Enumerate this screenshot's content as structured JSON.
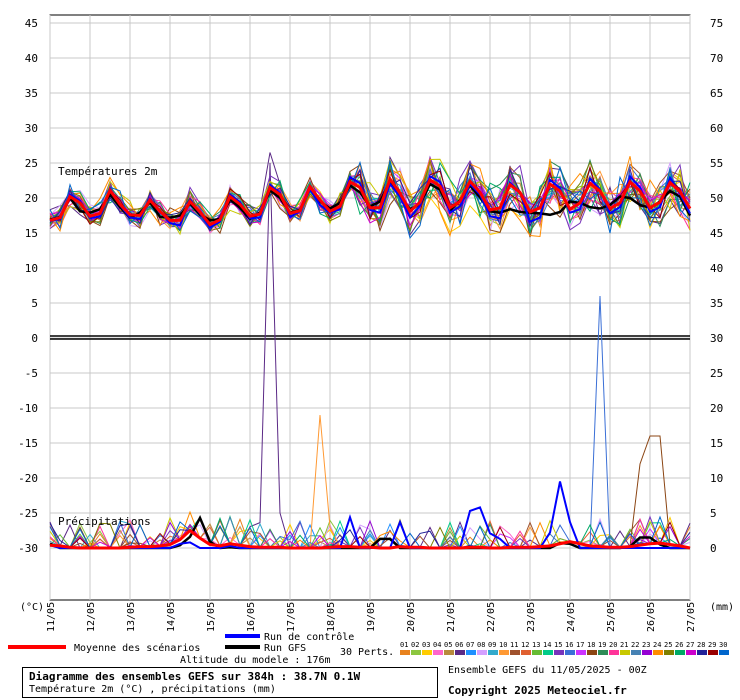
{
  "chart_data": {
    "type": "line",
    "title": "Diagramme des ensembles GEFS sur 384h : 38.7N 0.1W",
    "subtitle": "Température 2m (°C) , précipitations (mm)",
    "altitude_label": "Altitude du modele : 176m",
    "run_info": "Ensemble GEFS du 11/05/2025 - 00Z",
    "copyright": "Copyright 2025 Meteociel.fr",
    "temp_label": "Températures 2m",
    "precip_label": "Précipitations",
    "left_axis_unit": "(°C)",
    "right_axis_unit": "(mm)",
    "left_ticks": [
      45,
      40,
      35,
      30,
      25,
      20,
      15,
      10,
      5,
      0,
      -5,
      -10,
      -15,
      -20,
      -25,
      -30
    ],
    "right_ticks": [
      75,
      70,
      65,
      60,
      55,
      50,
      45,
      40,
      35,
      30,
      25,
      20,
      15,
      10,
      5,
      0
    ],
    "ylim_temp": [
      -30,
      45
    ],
    "ylim_precip": [
      0,
      75
    ],
    "x_dates": [
      "11/05",
      "12/05",
      "13/05",
      "14/05",
      "15/05",
      "16/05",
      "17/05",
      "18/05",
      "19/05",
      "20/05",
      "21/05",
      "22/05",
      "23/05",
      "24/05",
      "25/05",
      "26/05",
      "27/05"
    ],
    "grid": true,
    "legend": {
      "mean": "Moyenne des scénarios",
      "control": "Run de contrôle",
      "gfs": "Run GFS",
      "perts": "30 Perts.",
      "pert_ids": [
        "01",
        "02",
        "03",
        "04",
        "05",
        "06",
        "07",
        "08",
        "09",
        "10",
        "11",
        "12",
        "13",
        "14",
        "15",
        "16",
        "17",
        "18",
        "19",
        "20",
        "21",
        "22",
        "23",
        "24",
        "25",
        "26",
        "27",
        "28",
        "29",
        "30"
      ]
    },
    "colors": {
      "mean": "#ff0000",
      "control": "#0000ff",
      "gfs": "#000000",
      "perts": [
        "#e8821e",
        "#8cc63f",
        "#ffcc00",
        "#ff66cc",
        "#b88a3c",
        "#5b2a86",
        "#1e90ff",
        "#d4a0ff",
        "#33aacc",
        "#ff9933",
        "#a0522d",
        "#e06030",
        "#66bb33",
        "#00cc88",
        "#7733bb",
        "#3a6fd6",
        "#cc33ff",
        "#8b4513",
        "#2e8b57",
        "#ff3399",
        "#c8c800",
        "#4682b4",
        "#9400d3",
        "#ff8c00",
        "#808000",
        "#00aa66",
        "#cc00cc",
        "#222299",
        "#990000",
        "#0066cc"
      ]
    },
    "series": [
      {
        "name": "Moyenne des scénarios",
        "x_step_hours": 6,
        "temp_values": [
          16.8,
          17.2,
          20.2,
          19.3,
          17.4,
          17.8,
          21.1,
          19.1,
          17.6,
          17.5,
          19.7,
          18.1,
          16.8,
          16.8,
          19.5,
          18.0,
          16.2,
          16.9,
          20.2,
          19.1,
          17.4,
          17.7,
          21.5,
          20.5,
          17.8,
          18.2,
          21.6,
          19.7,
          18.1,
          18.8,
          22.3,
          21.5,
          18.6,
          18.6,
          22.7,
          20.7,
          18.1,
          19.4,
          22.6,
          21.7,
          18.6,
          19.5,
          22.4,
          20.8,
          18.3,
          18.6,
          21.9,
          20.8,
          18.0,
          18.6,
          22.0,
          21.0,
          18.4,
          19.3,
          22.1,
          21.0,
          18.5,
          19.3,
          22.3,
          21.0,
          18.6,
          19.4,
          22.2,
          20.9,
          18.5
        ],
        "precip_values": [
          0.4,
          0.3,
          0.1,
          0,
          0,
          0,
          0,
          0,
          0.1,
          0.2,
          0.2,
          0.3,
          0.5,
          1.2,
          2.5,
          1.4,
          0.5,
          0.3,
          0.6,
          0.4,
          0.2,
          0.1,
          0.1,
          0.1,
          0,
          0,
          0,
          0,
          0.1,
          0.2,
          0.2,
          0.1,
          0.1,
          0,
          0,
          0.2,
          0.1,
          0.1,
          0,
          0,
          0,
          0,
          0.1,
          0.1,
          0,
          0,
          0.1,
          0.1,
          0.1,
          0.2,
          0.3,
          0.6,
          0.9,
          0.6,
          0.3,
          0.2,
          0.1,
          0.1,
          0.2,
          0.4,
          0.6,
          0.7,
          0.5,
          0.3,
          0
        ]
      },
      {
        "name": "Run de contrôle",
        "x_step_hours": 6,
        "temp_values": [
          16.7,
          17.0,
          20.5,
          19.6,
          17.1,
          17.4,
          21.3,
          19.0,
          17.2,
          17.0,
          19.9,
          18.2,
          16.4,
          16.1,
          19.6,
          17.8,
          15.8,
          16.6,
          20.5,
          19.4,
          17.1,
          17.2,
          21.9,
          20.7,
          17.3,
          18.1,
          21.2,
          19.0,
          17.9,
          18.4,
          23.0,
          22.1,
          18.3,
          17.9,
          22.0,
          20.2,
          17.2,
          18.9,
          23.1,
          22.3,
          17.9,
          18.8,
          22.0,
          20.5,
          17.4,
          17.1,
          22.2,
          20.8,
          16.6,
          17.2,
          22.6,
          21.4,
          17.9,
          18.4,
          22.8,
          21.2,
          17.8,
          18.7,
          23.1,
          21.5,
          18.0,
          18.7,
          22.9,
          20.6,
          17.8
        ],
        "precip_values": [
          0.4,
          0,
          0,
          0,
          0,
          0,
          0,
          0,
          0,
          0,
          0,
          0,
          0,
          0.6,
          0.8,
          0,
          0,
          0,
          0.3,
          0,
          0,
          0,
          0,
          0,
          0,
          0,
          0,
          0,
          0,
          0,
          4.4,
          0,
          0,
          0,
          0,
          3.7,
          0,
          0,
          0,
          0,
          0,
          0,
          5.3,
          5.8,
          2.1,
          1.3,
          0,
          0,
          0,
          0,
          2.2,
          9.5,
          3.7,
          0,
          0,
          0,
          0,
          0,
          0,
          0,
          0,
          0,
          0,
          0,
          0
        ]
      },
      {
        "name": "Run GFS",
        "x_step_hours": 6,
        "temp_values": [
          16.9,
          17.3,
          20.0,
          18.1,
          17.9,
          18.4,
          20.5,
          18.7,
          17.2,
          17.9,
          19.4,
          17.3,
          17.2,
          17.5,
          19.2,
          17.6,
          16.8,
          17.0,
          19.8,
          18.6,
          17.0,
          17.9,
          21.1,
          20.0,
          17.9,
          18.3,
          21.3,
          19.5,
          18.5,
          19.3,
          21.8,
          20.8,
          18.8,
          19.5,
          22.3,
          20.3,
          18.4,
          19.1,
          22.0,
          21.2,
          18.2,
          19.7,
          21.8,
          20.1,
          18.1,
          17.9,
          18.4,
          18.0,
          17.9,
          17.8,
          17.6,
          18.0,
          19.5,
          19.3,
          18.7,
          18.5,
          19.0,
          20.2,
          20.0,
          19.0,
          18.6,
          19.5,
          21.0,
          20.2,
          17.5
        ],
        "precip_values": [
          0.6,
          0,
          0,
          0,
          0,
          0,
          0,
          0,
          0,
          0,
          0,
          0,
          0,
          0.4,
          1.6,
          4.3,
          0.9,
          0,
          0.1,
          0,
          0,
          0,
          0,
          0,
          0,
          0,
          0,
          0,
          0,
          0,
          0,
          0,
          0,
          1.3,
          1.3,
          0,
          0,
          0,
          0,
          0,
          0,
          0,
          0,
          0,
          0,
          0,
          0,
          0,
          0,
          0,
          0,
          0.7,
          0.6,
          0,
          0,
          0,
          0,
          0,
          0.2,
          1.5,
          1.5,
          0.5,
          0,
          0,
          0
        ]
      }
    ]
  }
}
